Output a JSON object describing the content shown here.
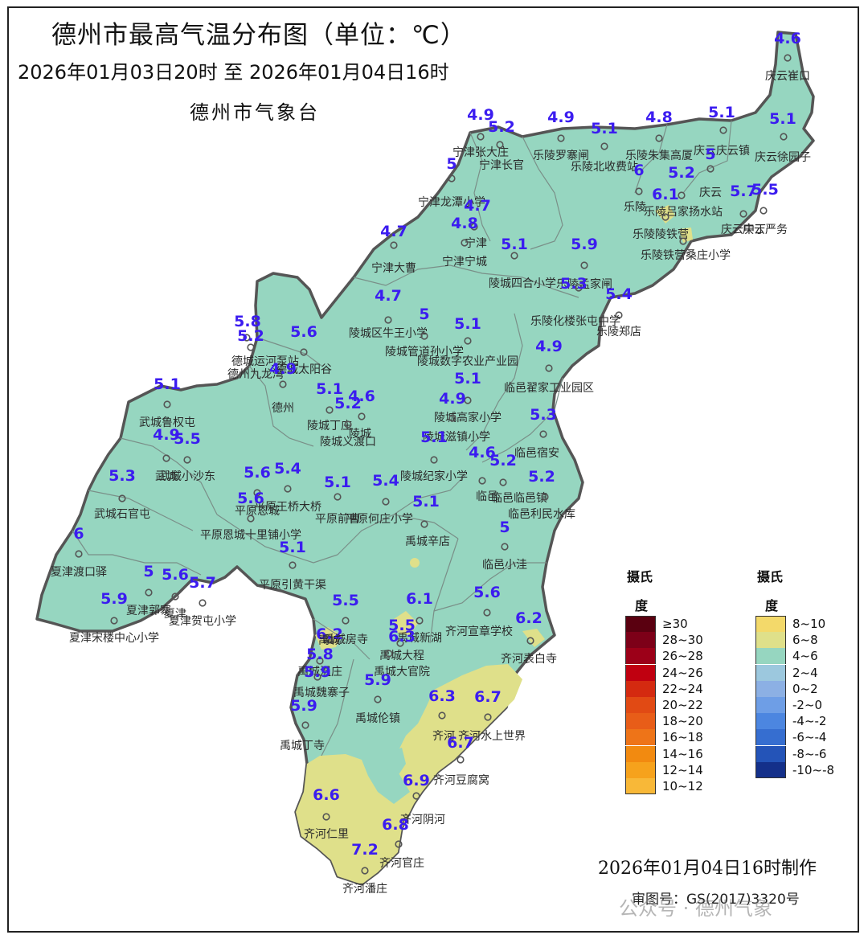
{
  "header": {
    "title": "德州市最高气温分布图（单位：℃）",
    "period": "2026年01月03日20时  至  2026年01月04日16时",
    "issuer": "德州市气象台"
  },
  "footer": {
    "made": "2026年01月04日16时制作",
    "review": "审图号：GS(2017)3320号",
    "watermark": "公众号 · 德州气象"
  },
  "legend": {
    "title_line1": "摄氏",
    "title_line2": "度",
    "warm": [
      {
        "label": "≥30",
        "color": "#5a0010"
      },
      {
        "label": "28~30",
        "color": "#7d0018"
      },
      {
        "label": "26~28",
        "color": "#9c0018"
      },
      {
        "label": "24~26",
        "color": "#c00010"
      },
      {
        "label": "22~24",
        "color": "#d42a10"
      },
      {
        "label": "20~22",
        "color": "#e14a14"
      },
      {
        "label": "18~20",
        "color": "#e85d18"
      },
      {
        "label": "16~18",
        "color": "#ee7418"
      },
      {
        "label": "14~16",
        "color": "#f28a10"
      },
      {
        "label": "12~14",
        "color": "#f6a21c"
      },
      {
        "label": "10~12",
        "color": "#f8b838"
      }
    ],
    "cool": [
      {
        "label": "8~10",
        "color": "#f3d96a"
      },
      {
        "label": "6~8",
        "color": "#dfe08a"
      },
      {
        "label": "4~6",
        "color": "#96d6c0"
      },
      {
        "label": "2~4",
        "color": "#9cc8de"
      },
      {
        "label": "0~2",
        "color": "#8cb0e4"
      },
      {
        "label": "-2~0",
        "color": "#6e9ee6"
      },
      {
        "label": "-4~-2",
        "color": "#4c86e0"
      },
      {
        "label": "-6~-4",
        "color": "#366ed0"
      },
      {
        "label": "-8~-6",
        "color": "#2454b8"
      },
      {
        "label": "-10~-8",
        "color": "#14308a"
      }
    ]
  },
  "stations": [
    {
      "name": "庆云崔口",
      "value": "4.6"
    },
    {
      "name": "宁津张大庄",
      "value": "4.9"
    },
    {
      "name": "宁津长官",
      "value": "5.2"
    },
    {
      "name": "乐陵罗寨闸",
      "value": "4.9"
    },
    {
      "name": "乐陵北收费站",
      "value": "5.1"
    },
    {
      "name": "乐陵朱集高厦",
      "value": "4.8"
    },
    {
      "name": "庆云庆云镇",
      "value": "5.1"
    },
    {
      "name": "庆云徐园子",
      "value": "5.1"
    },
    {
      "name": "宁津龙潭小学",
      "value": "5"
    },
    {
      "name": "庆云",
      "value": "5"
    },
    {
      "name": "乐陵",
      "value": "6"
    },
    {
      "name": "乐陵吕家扬水站",
      "value": "5.2"
    },
    {
      "name": "庆云中丁",
      "value": "5.7"
    },
    {
      "name": "庆云严务",
      "value": "5.5"
    },
    {
      "name": "乐陵陵铁营",
      "value": "6.1"
    },
    {
      "name": "宁津",
      "value": "4.7"
    },
    {
      "name": "宁津宁城",
      "value": "4.8"
    },
    {
      "name": "宁津大曹",
      "value": "4.7"
    },
    {
      "name": "陵城四合小学",
      "value": "5.1"
    },
    {
      "name": "乐陵孟家闸",
      "value": "5.9"
    },
    {
      "name": "乐陵铁营桑庄小学",
      "value": ""
    },
    {
      "name": "乐陵化楼张屯中学",
      "value": "5.3"
    },
    {
      "name": "乐陵郑店",
      "value": "5.4"
    },
    {
      "name": "陵城区牛王小学",
      "value": "4.7"
    },
    {
      "name": "陵城管道孙小学",
      "value": "5"
    },
    {
      "name": "陵城数字农业产业园",
      "value": "5.1"
    },
    {
      "name": "德城运河泵站",
      "value": "5.8"
    },
    {
      "name": "德州九龙湾",
      "value": "5.2"
    },
    {
      "name": "德城太阳谷",
      "value": "5.6"
    },
    {
      "name": "临邑翟家工业园区",
      "value": "4.9"
    },
    {
      "name": "德州",
      "value": "4.9"
    },
    {
      "name": "武城鲁权屯",
      "value": "5.1"
    },
    {
      "name": "陵城丁庄",
      "value": "5.1"
    },
    {
      "name": "陵城",
      "value": "4.6"
    },
    {
      "name": "陵城义渡口",
      "value": "5.2"
    },
    {
      "name": "陵城高家小学",
      "value": "5.1"
    },
    {
      "name": "陵城滋镇小学",
      "value": "4.9"
    },
    {
      "name": "临邑宿安",
      "value": "5.3"
    },
    {
      "name": "武城",
      "value": "4.9"
    },
    {
      "name": "武城小沙东",
      "value": "5.5"
    },
    {
      "name": "陵城纪家小学",
      "value": "5.1"
    },
    {
      "name": "临邑",
      "value": "4.6"
    },
    {
      "name": "临邑临邑镇",
      "value": "5.2"
    },
    {
      "name": "武城石官屯",
      "value": "5.3"
    },
    {
      "name": "平原恩城",
      "value": "5.6"
    },
    {
      "name": "平原王桥大桥",
      "value": "5.4"
    },
    {
      "name": "平原前曹",
      "value": "5.1"
    },
    {
      "name": "平原何庄小学",
      "value": "5.4"
    },
    {
      "name": "临邑利民水库",
      "value": "5.2"
    },
    {
      "name": "平原恩城十里铺小学",
      "value": "5.6"
    },
    {
      "name": "禹城辛店",
      "value": "5.1"
    },
    {
      "name": "夏津渡口驿",
      "value": "6"
    },
    {
      "name": "临邑小洼",
      "value": "5"
    },
    {
      "name": "平原引黄干渠",
      "value": "5.1"
    },
    {
      "name": "夏津郭寨",
      "value": "5"
    },
    {
      "name": "夏津",
      "value": "5.6"
    },
    {
      "name": "夏津贺屯小学",
      "value": "5.7"
    },
    {
      "name": "夏津宋楼中心小学",
      "value": "5.9"
    },
    {
      "name": "禹城房寺",
      "value": "5.5"
    },
    {
      "name": "禹城新湖",
      "value": "6.1"
    },
    {
      "name": "齐河宣章学校",
      "value": "5.6"
    },
    {
      "name": "禹城",
      "value": "6.2"
    },
    {
      "name": "禹城大程",
      "value": "5.5"
    },
    {
      "name": "禹城温庄",
      "value": "5.8"
    },
    {
      "name": "禹城大官院",
      "value": "6.3"
    },
    {
      "name": "齐河表白寺",
      "value": "6.2"
    },
    {
      "name": "禹城魏寨子",
      "value": "5.9"
    },
    {
      "name": "禹城伦镇",
      "value": "5.9"
    },
    {
      "name": "齐河",
      "value": "6.3"
    },
    {
      "name": "齐河水上世界",
      "value": "6.7"
    },
    {
      "name": "禹城丁寺",
      "value": "5.9"
    },
    {
      "name": "齐河豆腐窝",
      "value": "6.7"
    },
    {
      "name": "齐河阴河",
      "value": "6.9"
    },
    {
      "name": "齐河仁里",
      "value": "6.6"
    },
    {
      "name": "齐河官庄",
      "value": "6.8"
    },
    {
      "name": "齐河潘庄",
      "value": "7.2"
    }
  ],
  "colors": {
    "zone_4_6": "#96d6c0",
    "zone_6_8": "#dfe08a",
    "zone_8_10": "#f3d96a",
    "border": "#555555",
    "value_text": "#3b1cf0"
  }
}
